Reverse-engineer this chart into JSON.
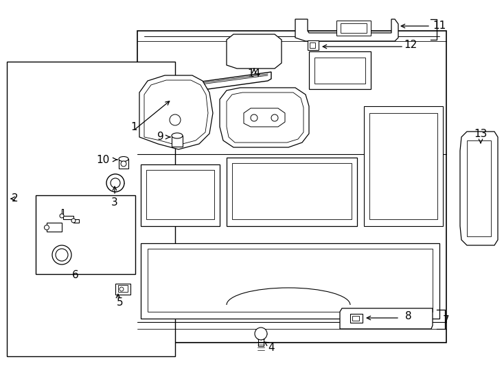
{
  "bg_color": "#ffffff",
  "line_color": "#000000",
  "label_color": "#000000",
  "lw": 1.0,
  "label_fontsize": 11
}
